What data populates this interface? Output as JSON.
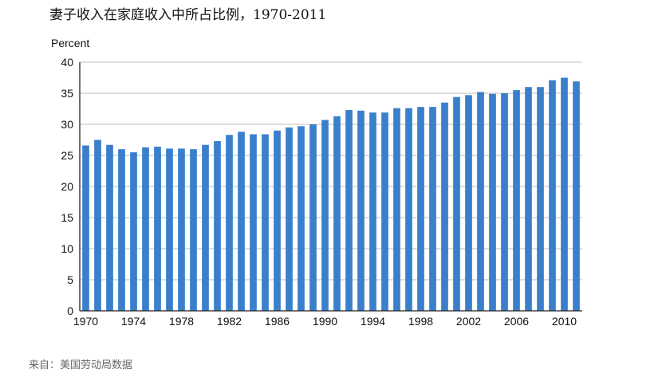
{
  "page": {
    "title": "妻子收入在家庭收入中所占比例，1970-2011",
    "source": "来自：美国劳动局数据"
  },
  "chart_data": {
    "type": "bar",
    "title": "妻子收入在家庭收入中所占比例，1970-2011",
    "ylabel": "Percent",
    "xlabel": "",
    "ylim": [
      0,
      40
    ],
    "yticks": [
      0,
      5,
      10,
      15,
      20,
      25,
      30,
      35,
      40
    ],
    "xtick_labels": [
      "1970",
      "1974",
      "1978",
      "1982",
      "1986",
      "1990",
      "1994",
      "1998",
      "2002",
      "2006",
      "2010"
    ],
    "grid": true,
    "bar_color": "#3a7fcb",
    "categories": [
      "1970",
      "1971",
      "1972",
      "1973",
      "1974",
      "1975",
      "1976",
      "1977",
      "1978",
      "1979",
      "1980",
      "1981",
      "1982",
      "1983",
      "1984",
      "1985",
      "1986",
      "1987",
      "1988",
      "1989",
      "1990",
      "1991",
      "1992",
      "1993",
      "1994",
      "1995",
      "1996",
      "1997",
      "1998",
      "1999",
      "2000",
      "2001",
      "2002",
      "2003",
      "2004",
      "2005",
      "2006",
      "2007",
      "2008",
      "2009",
      "2010",
      "2011"
    ],
    "values": [
      26.6,
      27.5,
      26.7,
      26.0,
      25.5,
      26.3,
      26.4,
      26.1,
      26.1,
      26.0,
      26.7,
      27.3,
      28.3,
      28.8,
      28.4,
      28.4,
      29.0,
      29.5,
      29.7,
      30.0,
      30.7,
      31.3,
      32.3,
      32.2,
      31.9,
      31.9,
      32.6,
      32.6,
      32.8,
      32.8,
      33.5,
      34.4,
      34.7,
      35.2,
      34.9,
      35.0,
      35.5,
      36.0,
      36.0,
      37.1,
      37.5,
      36.9
    ]
  }
}
